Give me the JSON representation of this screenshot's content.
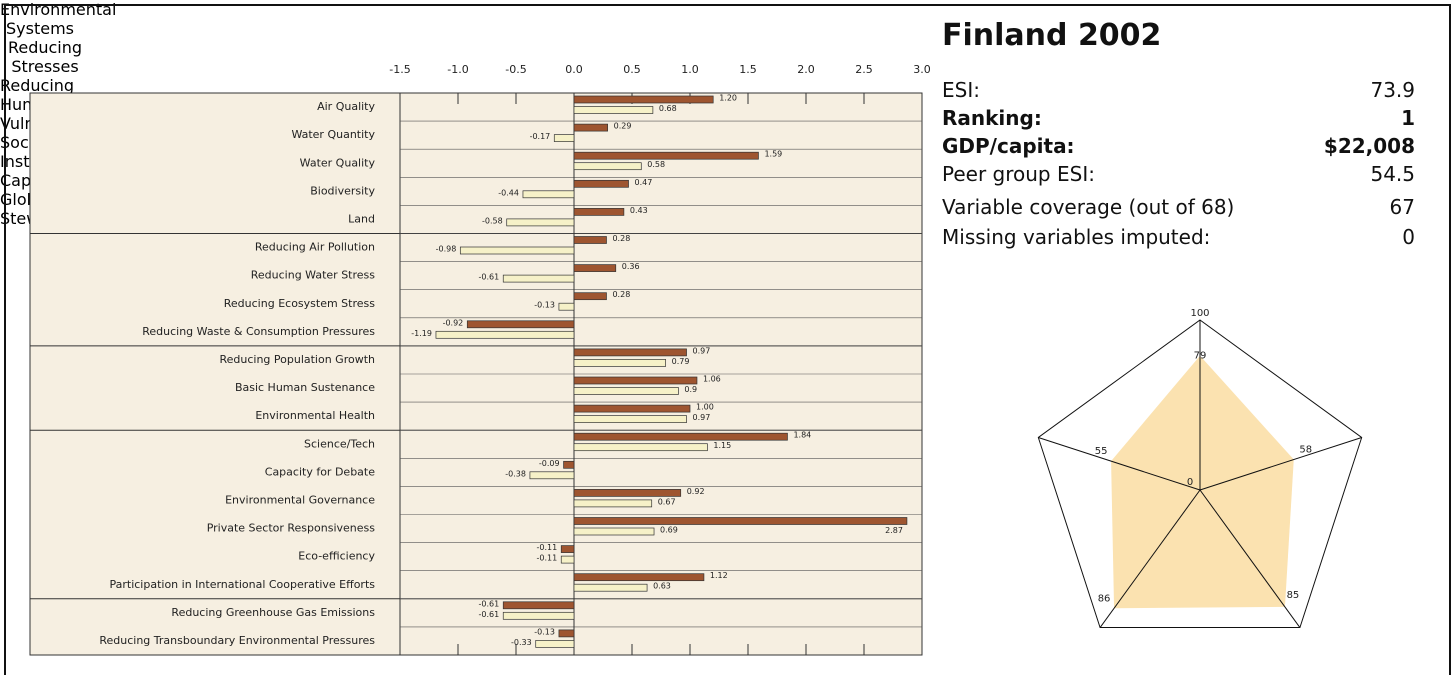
{
  "chart_data": [
    {
      "type": "hbar",
      "categories": [
        "Air Quality",
        "Water Quantity",
        "Water Quality",
        "Biodiversity",
        "Land",
        "Reducing Air Pollution",
        "Reducing Water Stress",
        "Reducing Ecosystem Stress",
        "Reducing Waste & Consumption Pressures",
        "Reducing Population Growth",
        "Basic Human Sustenance",
        "Environmental Health",
        "Science/Tech",
        "Capacity for Debate",
        "Environmental Governance",
        "Private Sector Responsiveness",
        "Eco-efficiency",
        "Participation in International Cooperative Efforts",
        "Reducing Greenhouse Gas Emissions",
        "Reducing Transboundary Environmental Pressures"
      ],
      "series": [
        {
          "color": "#9e5530",
          "values": [
            1.2,
            0.29,
            1.59,
            0.47,
            0.43,
            0.28,
            0.36,
            0.28,
            -0.92,
            0.97,
            1.06,
            1.0,
            1.84,
            -0.09,
            0.92,
            2.87,
            -0.11,
            1.12,
            -0.61,
            -0.13
          ],
          "value_labels": [
            "1.20",
            "0.29",
            "1.59",
            "0.47",
            "0.43",
            "0.28",
            "0.36",
            "0.28",
            "-0.92",
            "0.97",
            "1.06",
            "1.00",
            "1.84",
            "-0.09",
            "0.92",
            "2.87",
            "-0.11",
            "1.12",
            "-0.61",
            "-0.13"
          ]
        },
        {
          "color": "#f6f1c8",
          "values": [
            0.68,
            -0.17,
            0.58,
            -0.44,
            -0.58,
            -0.98,
            -0.61,
            -0.13,
            -1.19,
            0.79,
            0.9,
            0.97,
            1.15,
            -0.38,
            0.67,
            0.69,
            -0.11,
            0.63,
            -0.61,
            -0.33
          ],
          "value_labels": [
            "0.68",
            "-0.17",
            "0.58",
            "-0.44",
            "-0.58",
            "-0.98",
            "-0.61",
            "-0.13",
            "-1.19",
            "0.79",
            "0.9",
            "0.97",
            "1.15",
            "-0.38",
            "0.67",
            "0.69",
            "-0.11",
            "0.63",
            "-0.61",
            "-0.33"
          ]
        }
      ],
      "xlim": [
        -1.5,
        3.0
      ],
      "xticks": [
        -1.5,
        {
          "value": -1.0,
          "label": "-1.0"
        },
        -0.5,
        {
          "value": 0,
          "label": "0.0"
        },
        0.5,
        {
          "value": 1.0,
          "label": "1.0"
        },
        1.5,
        {
          "value": 2.0,
          "label": "2.0"
        },
        2.5,
        {
          "value": 3.0,
          "label": "3.0"
        }
      ]
    },
    {
      "type": "radar",
      "axes": [
        "Environmental Systems",
        "Reducing Stresses",
        "Reducing Human Vulnerability",
        "Social & Institutional Capacity",
        "Global Stewardship"
      ],
      "values": [
        79,
        58,
        85,
        86,
        55
      ],
      "color": "#fbe2b0",
      "rlim": [
        0,
        100
      ],
      "rticks": [
        0,
        100
      ]
    }
  ],
  "info": {
    "title": "Finland  2002",
    "rows": [
      {
        "label": "ESI:",
        "value": "73.9"
      },
      {
        "label": "Ranking:",
        "value": "1"
      },
      {
        "label": "GDP/capita:",
        "value": "$22,008"
      },
      {
        "label": "Peer group ESI:",
        "value": "54.5"
      },
      {
        "label": "Variable coverage (out of 68)",
        "value": "67"
      },
      {
        "label": "Missing variables imputed:",
        "value": "0"
      }
    ]
  }
}
